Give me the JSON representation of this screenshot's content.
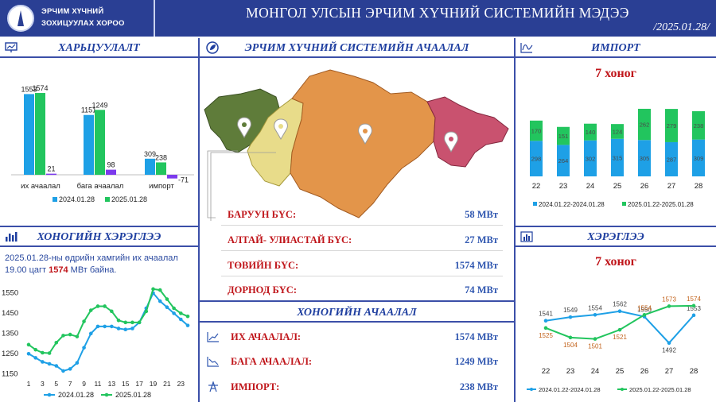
{
  "header": {
    "org_line1": "ЭРЧИМ ХҮЧНИЙ",
    "org_line2": "ЗОХИЦУУЛАХ ХОРОО",
    "title": "МОНГОЛ УЛСЫН ЭРЧИМ ХҮЧНИЙ СИСТЕМИЙН МЭДЭЭ",
    "date": "/2025.01.28/"
  },
  "panels": {
    "comparison_title": "ХАРЬЦУУЛАЛТ",
    "system_load_title": "ЭРЧИМ ХҮЧНИЙ СИСТЕМИЙН АЧААЛАЛ",
    "import_title": "ИМПОРТ",
    "daily_consumption_title": "ХОНОГИЙН ХЭРЭГЛЭЭ",
    "daily_load_title": "ХОНОГИЙН АЧААЛАЛ",
    "consumption_title": "ХЭРЭГЛЭЭ"
  },
  "colors": {
    "accent": "#2a3f94",
    "series_blue": "#1ea0e6",
    "series_green": "#22c55e",
    "series_purple": "#7c3aed",
    "red_text": "#c0161b"
  },
  "regions": [
    {
      "name": "БАРУУН БҮС:",
      "value": "58 МВт"
    },
    {
      "name": "АЛТАЙ- УЛИАСТАЙ БҮС:",
      "value": "27 МВт"
    },
    {
      "name": "ТӨВИЙН БҮС:",
      "value": "1574 МВт"
    },
    {
      "name": "ДОРНОД БҮС:",
      "value": "74 МВт"
    }
  ],
  "daily_load": [
    {
      "name": "ИХ АЧААЛАЛ:",
      "value": "1574 МВт",
      "icon": "trend-up-icon"
    },
    {
      "name": "БАГА АЧААЛАЛ:",
      "value": "1249 МВт",
      "icon": "trend-down-icon"
    },
    {
      "name": "ИМПОРТ:",
      "value": "238 МВт",
      "icon": "transmission-tower-icon"
    }
  ],
  "daily_note": {
    "before": "2025.01.28-ны өдрийн хамгийн их ачаалал 19.00 цагт ",
    "highlight": "1574",
    "after": " МВт байна."
  },
  "import_subtitle": "7 хоног",
  "consumption_subtitle": "7 хоног",
  "chart_data": [
    {
      "id": "comparison",
      "type": "bar",
      "categories": [
        "их ачаалал",
        "бага ачаалал",
        "импорт"
      ],
      "series": [
        {
          "name": "2024.01.28",
          "values": [
            1553,
            1151,
            309
          ],
          "color": "#1ea0e6"
        },
        {
          "name": "2025.01.28",
          "values": [
            1574,
            1249,
            238
          ],
          "color": "#22c55e"
        },
        {
          "values": [
            21,
            98,
            -71
          ],
          "color": "#7c3aed"
        }
      ],
      "ylim": [
        -100,
        1650
      ]
    },
    {
      "id": "import",
      "type": "bar",
      "stacked": true,
      "categories": [
        "22",
        "23",
        "24",
        "25",
        "26",
        "27",
        "28"
      ],
      "series": [
        {
          "name": "2024.01.22-2024.01.28",
          "values": [
            298,
            264,
            302,
            315,
            305,
            287,
            309
          ],
          "color": "#1ea0e6"
        },
        {
          "name": "2025.01.22-2025.01.28",
          "values": [
            170,
            151,
            140,
            124,
            262,
            279,
            238
          ],
          "color": "#22c55e"
        }
      ],
      "ylim": [
        0,
        600
      ]
    },
    {
      "id": "daily_consumption",
      "type": "line",
      "x": [
        1,
        2,
        3,
        4,
        5,
        6,
        7,
        8,
        9,
        10,
        11,
        12,
        13,
        14,
        15,
        16,
        17,
        18,
        19,
        20,
        21,
        22,
        23,
        24
      ],
      "x_ticks": [
        "1",
        "3",
        "5",
        "7",
        "9",
        "11",
        "13",
        "15",
        "17",
        "19",
        "21",
        "23"
      ],
      "series": [
        {
          "name": "2024.01.28",
          "values": [
            1245,
            1225,
            1205,
            1195,
            1185,
            1160,
            1170,
            1200,
            1275,
            1345,
            1380,
            1380,
            1380,
            1370,
            1365,
            1370,
            1400,
            1470,
            1545,
            1505,
            1475,
            1445,
            1415,
            1385
          ],
          "color": "#1ea0e6"
        },
        {
          "name": "2025.01.28",
          "values": [
            1290,
            1265,
            1250,
            1248,
            1300,
            1335,
            1340,
            1330,
            1405,
            1460,
            1480,
            1480,
            1455,
            1410,
            1400,
            1400,
            1400,
            1455,
            1565,
            1560,
            1515,
            1470,
            1445,
            1430
          ],
          "color": "#22c55e"
        }
      ],
      "y_ticks": [
        1150,
        1250,
        1350,
        1450,
        1550
      ],
      "ylim": [
        1140,
        1580
      ]
    },
    {
      "id": "consumption",
      "type": "line",
      "categories": [
        "22",
        "23",
        "24",
        "25",
        "26",
        "27",
        "28"
      ],
      "series": [
        {
          "name": "2024.01.22-2024.01.28",
          "values": [
            1541,
            1549,
            1554,
            1562,
            1550,
            1492,
            1553
          ],
          "color": "#1ea0e6"
        },
        {
          "name": "2025.01.22-2025.01.28",
          "values": [
            1525,
            1504,
            1501,
            1521,
            1554,
            1573,
            1574
          ],
          "color": "#22c55e"
        }
      ],
      "ylim": [
        1460,
        1600
      ]
    }
  ]
}
